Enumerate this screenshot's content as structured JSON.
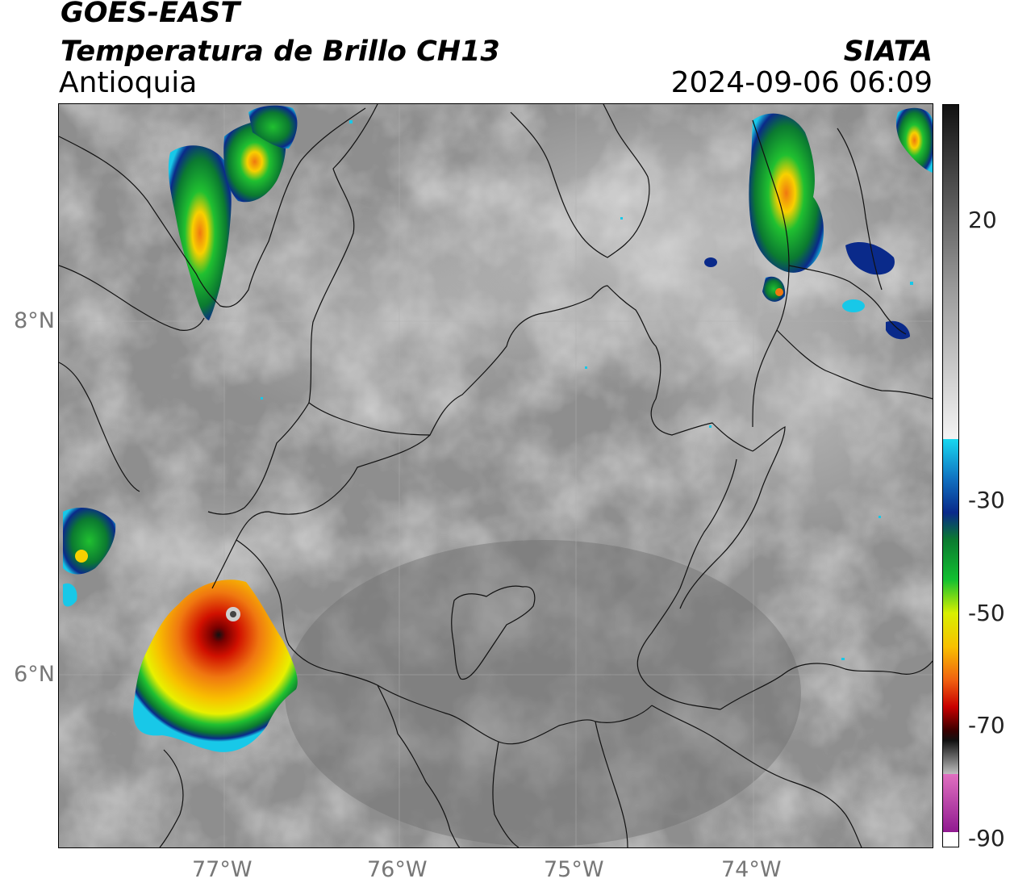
{
  "header": {
    "satellite": "GOES-EAST",
    "product": "Temperatura de Brillo CH13",
    "region": "Antioquia",
    "agency": "SIATA",
    "datetime": "2024-09-06 06:09"
  },
  "map": {
    "lat_ticks": [
      "8°N",
      "6°N"
    ],
    "lon_ticks": [
      "77°W",
      "76°W",
      "75°W",
      "74°W"
    ]
  },
  "colorbar": {
    "tick_labels": [
      "20",
      "-30",
      "-50",
      "-70",
      "-90"
    ],
    "colors": {
      "warm_gray_top": "#222222",
      "mid_gray": "#9a9a9a",
      "white": "#f2f2f2",
      "cyan": "#18c8e8",
      "dark_blue": "#0a2a8a",
      "green": "#12b030",
      "yellow": "#f0e800",
      "orange": "#f08a10",
      "red": "#c80000",
      "black": "#111111",
      "pink": "#e070c0",
      "purple": "#902090"
    }
  }
}
